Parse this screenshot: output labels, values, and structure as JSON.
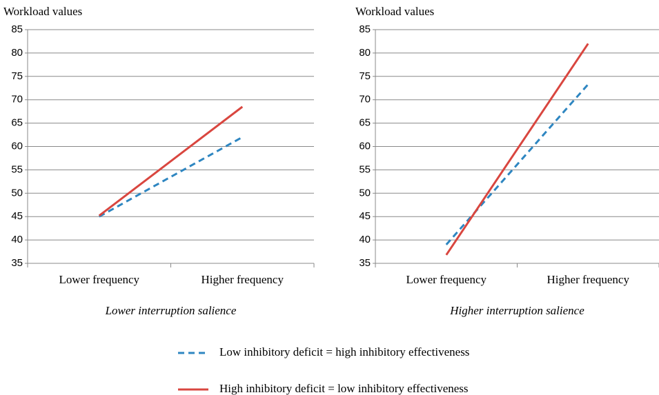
{
  "chart_data": [
    {
      "type": "line",
      "y_label": "Workload values",
      "subtitle": "Lower interruption salience",
      "categories": [
        "Lower frequency",
        "Higher frequency"
      ],
      "ylim": [
        35,
        85
      ],
      "yticks": [
        35,
        40,
        45,
        50,
        55,
        60,
        65,
        70,
        75,
        80,
        85
      ],
      "grid": true,
      "series": [
        {
          "name": "Low inhibitory deficit = high inhibitory effectiveness",
          "color": "#2e86c1",
          "dash": true,
          "values": [
            45,
            62
          ]
        },
        {
          "name": "High inhibitory deficit = low inhibitory effectiveness",
          "color": "#d9463f",
          "dash": false,
          "values": [
            45.2,
            68.5
          ]
        }
      ]
    },
    {
      "type": "line",
      "y_label": "Workload values",
      "subtitle": "Higher interruption salience",
      "categories": [
        "Lower frequency",
        "Higher frequency"
      ],
      "ylim": [
        35,
        85
      ],
      "yticks": [
        35,
        40,
        45,
        50,
        55,
        60,
        65,
        70,
        75,
        80,
        85
      ],
      "grid": true,
      "series": [
        {
          "color": "#2e86c1",
          "dash": true,
          "values": [
            39,
            73.3
          ]
        },
        {
          "color": "#d9463f",
          "dash": false,
          "values": [
            36.8,
            82
          ]
        }
      ]
    }
  ]
}
